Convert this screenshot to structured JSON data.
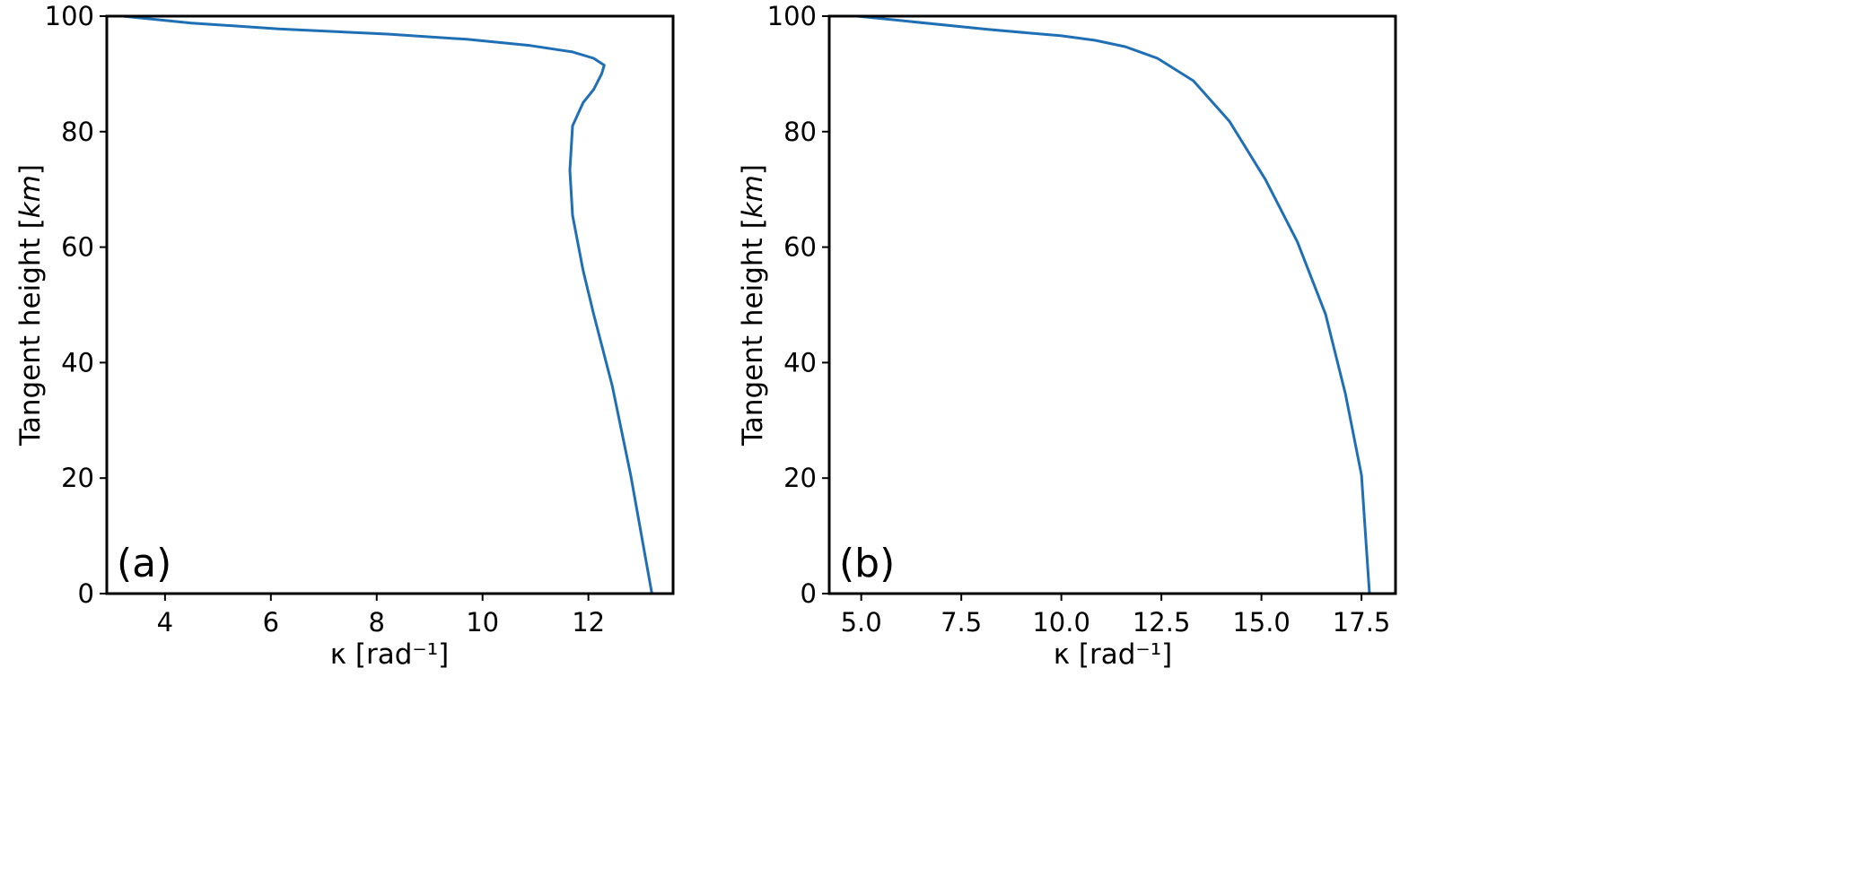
{
  "chart_data": [
    {
      "type": "line",
      "panel_label": "(a)",
      "xlabel": "κ [rad⁻¹]",
      "xlabel_parts": {
        "symbol": "κ",
        "unit": "rad",
        "exp": "−1"
      },
      "ylabel": "Tangent height [km]",
      "ylabel_parts": {
        "text": "Tangent height ",
        "unit": "km"
      },
      "xlim": [
        2.9,
        13.6
      ],
      "ylim": [
        0,
        100
      ],
      "xticks": [
        4,
        6,
        8,
        10,
        12
      ],
      "xtick_labels": [
        "4",
        "6",
        "8",
        "10",
        "12"
      ],
      "yticks": [
        0,
        20,
        40,
        60,
        80,
        100
      ],
      "ytick_labels": [
        "0",
        "20",
        "40",
        "60",
        "80",
        "100"
      ],
      "grid": false,
      "color": "#1f6fb4",
      "series": [
        {
          "x": [
            3.2,
            4.5,
            6.15,
            8.2,
            9.7,
            10.9,
            11.7,
            12.1,
            12.3,
            12.25,
            12.1,
            11.9,
            11.7,
            11.65,
            11.7,
            11.9,
            12.1,
            12.45,
            12.8,
            13.2
          ],
          "y": [
            100,
            98.8,
            97.8,
            96.9,
            96.0,
            94.9,
            93.8,
            92.7,
            91.5,
            90.0,
            87.3,
            85.0,
            81.0,
            73.3,
            65.5,
            56.0,
            48.4,
            36.0,
            20.5,
            0
          ]
        }
      ]
    },
    {
      "type": "line",
      "panel_label": "(b)",
      "xlabel": "κ [rad⁻¹]",
      "xlabel_parts": {
        "symbol": "κ",
        "unit": "rad",
        "exp": "−1"
      },
      "ylabel": "Tangent height [km]",
      "ylabel_parts": {
        "text": "Tangent height ",
        "unit": "km"
      },
      "xlim": [
        4.2,
        18.35
      ],
      "ylim": [
        0,
        100
      ],
      "xticks": [
        5.0,
        7.5,
        10.0,
        12.5,
        15.0,
        17.5
      ],
      "xtick_labels": [
        "5.0",
        "7.5",
        "10.0",
        "12.5",
        "15.0",
        "17.5"
      ],
      "yticks": [
        0,
        20,
        40,
        60,
        80,
        100
      ],
      "ytick_labels": [
        "0",
        "20",
        "40",
        "60",
        "80",
        "100"
      ],
      "grid": false,
      "color": "#1f6fb4",
      "series": [
        {
          "x": [
            4.9,
            8.16,
            10.0,
            10.85,
            11.6,
            12.4,
            13.3,
            14.2,
            15.1,
            15.9,
            16.6,
            17.1,
            17.5,
            17.7
          ],
          "y": [
            100,
            97.7,
            96.6,
            95.8,
            94.7,
            92.7,
            88.8,
            81.8,
            71.7,
            60.9,
            48.4,
            34.5,
            20.5,
            0
          ]
        }
      ]
    }
  ]
}
